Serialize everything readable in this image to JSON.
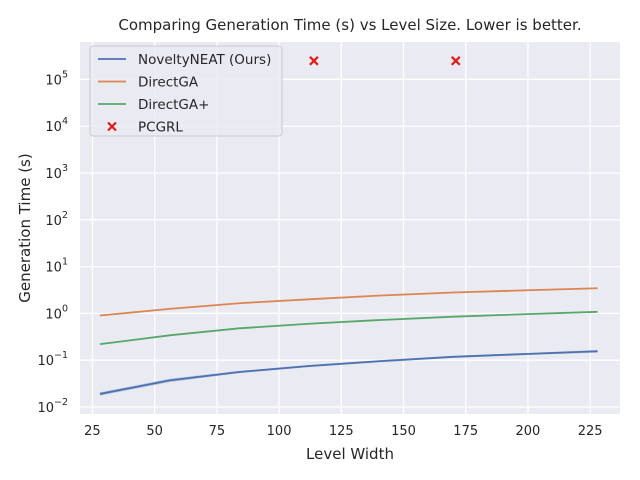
{
  "chart_data": {
    "type": "line",
    "title": "Comparing Generation Time (s) vs Level Size. Lower is better.",
    "xlabel": "Level Width",
    "ylabel": "Generation Time (s)",
    "xlim": [
      20,
      237
    ],
    "ylim_log10": [
      -2.15,
      5.8
    ],
    "y_scale": "log",
    "x_ticks": [
      25,
      50,
      75,
      100,
      125,
      150,
      175,
      200,
      225
    ],
    "y_ticks_exponent": [
      -2,
      -1,
      0,
      1,
      2,
      3,
      4,
      5
    ],
    "grid": true,
    "legend_position": "top-left",
    "series": [
      {
        "name": "NoveltyNEAT (Ours)",
        "color": "#4c72b0",
        "kind": "line",
        "x": [
          28,
          56,
          84,
          112,
          140,
          170,
          198,
          228
        ],
        "y": [
          0.019,
          0.037,
          0.056,
          0.075,
          0.095,
          0.118,
          0.135,
          0.155
        ],
        "y_band_low": [
          0.0175,
          0.034,
          0.053,
          0.071,
          0.09,
          0.112,
          0.128,
          0.145
        ],
        "y_band_high": [
          0.0205,
          0.04,
          0.059,
          0.079,
          0.1,
          0.124,
          0.142,
          0.165
        ]
      },
      {
        "name": "DirectGA",
        "color": "#dd8452",
        "kind": "line",
        "x": [
          28,
          56,
          84,
          112,
          140,
          170,
          198,
          228
        ],
        "y": [
          0.9,
          1.25,
          1.65,
          2.0,
          2.4,
          2.8,
          3.1,
          3.45
        ]
      },
      {
        "name": "DirectGA+",
        "color": "#55a868",
        "kind": "line",
        "x": [
          28,
          56,
          84,
          112,
          140,
          170,
          198,
          228
        ],
        "y": [
          0.22,
          0.34,
          0.48,
          0.6,
          0.72,
          0.85,
          0.96,
          1.08
        ]
      },
      {
        "name": "PCGRL",
        "color": "#e41a1c",
        "kind": "scatter",
        "marker": "x",
        "x": [
          114,
          171
        ],
        "y": [
          250000,
          250000
        ]
      }
    ]
  }
}
